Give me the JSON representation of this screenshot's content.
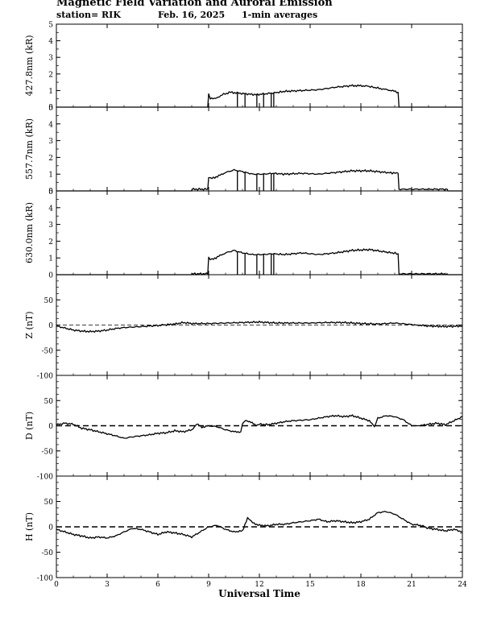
{
  "header": {
    "title": "Magnetic Field Variation and Auroral Emission",
    "station": "station= RIK",
    "date": "Feb. 16, 2025",
    "averaging": "1-min averages"
  },
  "chart_data": [
    {
      "type": "line",
      "ylabel": "427.8nm (kR)",
      "ylim": [
        0,
        5
      ],
      "yticks": [
        0,
        1,
        2,
        3,
        4,
        5
      ],
      "xlim": [
        0,
        24
      ],
      "series": [
        {
          "x": [
            0,
            8.95,
            9.0,
            9.1,
            9.4,
            9.8,
            10.3,
            10.7,
            11.2,
            11.8,
            12.3,
            12.8,
            13.5,
            14.5,
            15.5,
            16.5,
            17.5,
            18.3,
            19.0,
            19.8,
            20.2,
            20.25,
            24
          ],
          "values": [
            0,
            0,
            0.8,
            0.55,
            0.5,
            0.75,
            0.9,
            0.85,
            0.8,
            0.75,
            0.8,
            0.85,
            0.95,
            1.0,
            1.05,
            1.2,
            1.3,
            1.28,
            1.15,
            1.0,
            0.9,
            0,
            0
          ]
        }
      ],
      "spikes": [
        10.7,
        11.15,
        11.85,
        12.25,
        12.7,
        12.85
      ]
    },
    {
      "type": "line",
      "ylabel": "557.7nm (kR)",
      "ylim": [
        0,
        5
      ],
      "yticks": [
        0,
        1,
        2,
        3,
        4,
        5
      ],
      "xlim": [
        0,
        24
      ],
      "series": [
        {
          "x": [
            0,
            8.0,
            8.01,
            8.95,
            9.0,
            9.2,
            9.6,
            10.0,
            10.5,
            11.0,
            11.6,
            12.2,
            12.8,
            13.5,
            14.5,
            15.5,
            16.5,
            17.5,
            18.5,
            19.5,
            20.2,
            20.25,
            23.1,
            23.15,
            24
          ],
          "values": [
            0,
            0,
            0.1,
            0.1,
            0.8,
            0.75,
            0.9,
            1.1,
            1.25,
            1.15,
            1.0,
            1.0,
            1.05,
            1.0,
            1.05,
            1.0,
            1.1,
            1.2,
            1.2,
            1.1,
            1.05,
            0.1,
            0.1,
            0,
            0
          ]
        }
      ],
      "spikes": [
        10.7,
        11.15,
        11.85,
        12.25,
        12.7,
        12.85
      ]
    },
    {
      "type": "line",
      "ylabel": "630.0nm (kR)",
      "ylim": [
        0,
        5
      ],
      "yticks": [
        0,
        1,
        2,
        3,
        4,
        5
      ],
      "xlim": [
        0,
        24
      ],
      "series": [
        {
          "x": [
            0,
            8.0,
            8.01,
            8.95,
            9.0,
            9.2,
            9.6,
            10.0,
            10.5,
            11.0,
            11.6,
            12.2,
            12.8,
            13.5,
            14.5,
            15.5,
            16.5,
            17.5,
            18.5,
            19.5,
            20.2,
            20.25,
            23.1,
            23.15,
            24
          ],
          "values": [
            0,
            0,
            0.05,
            0.05,
            1.0,
            0.9,
            1.1,
            1.3,
            1.45,
            1.3,
            1.2,
            1.2,
            1.25,
            1.2,
            1.3,
            1.2,
            1.3,
            1.45,
            1.5,
            1.35,
            1.25,
            0.05,
            0.05,
            0,
            0
          ]
        }
      ],
      "spikes": [
        10.7,
        11.15,
        11.85,
        12.25,
        12.7,
        12.85
      ]
    },
    {
      "type": "line",
      "ylabel": "Z (nT)",
      "ylim": [
        -100,
        100
      ],
      "yticks": [
        -100,
        -50,
        0,
        50
      ],
      "xlim": [
        0,
        24
      ],
      "zeroline": true,
      "series": [
        {
          "x": [
            0,
            0.5,
            1.0,
            1.5,
            2.0,
            2.5,
            3.0,
            3.5,
            4.0,
            5.0,
            6.0,
            7.0,
            7.5,
            8.0,
            9.0,
            10.0,
            11.0,
            12.0,
            13.0,
            14.0,
            15.0,
            16.0,
            17.0,
            18.0,
            19.0,
            20.0,
            21.0,
            22.0,
            23.0,
            24.0
          ],
          "values": [
            -2,
            -6,
            -10,
            -12,
            -13,
            -12,
            -10,
            -7,
            -5,
            -3,
            -1,
            2,
            5,
            3,
            3,
            4,
            5,
            6,
            4,
            4,
            4,
            5,
            5,
            3,
            2,
            4,
            1,
            -2,
            -3,
            -2
          ]
        }
      ]
    },
    {
      "type": "line",
      "ylabel": "D (nT)",
      "ylim": [
        -100,
        100
      ],
      "yticks": [
        -100,
        -50,
        0,
        50
      ],
      "xlim": [
        0,
        24
      ],
      "zeroline": true,
      "series": [
        {
          "x": [
            0,
            0.5,
            1.0,
            1.5,
            2.0,
            2.5,
            3.0,
            3.5,
            4.0,
            4.5,
            5.0,
            5.5,
            6.0,
            6.5,
            7.0,
            7.5,
            8.0,
            8.3,
            8.6,
            9.0,
            9.5,
            10.0,
            10.5,
            10.9,
            11.0,
            11.2,
            11.5,
            11.8,
            12.0,
            12.5,
            13.0,
            13.5,
            14.0,
            15.0,
            15.5,
            16.0,
            16.5,
            17.0,
            17.5,
            18.0,
            18.5,
            18.8,
            19.0,
            19.5,
            20.0,
            20.5,
            21.0,
            21.5,
            22.0,
            22.5,
            23.0,
            23.5,
            24.0
          ],
          "values": [
            2,
            5,
            3,
            -5,
            -8,
            -12,
            -16,
            -20,
            -25,
            -22,
            -20,
            -18,
            -15,
            -14,
            -10,
            -12,
            -8,
            3,
            -3,
            0,
            -2,
            -8,
            -12,
            -12,
            5,
            10,
            8,
            0,
            3,
            2,
            5,
            8,
            10,
            12,
            15,
            18,
            20,
            18,
            20,
            15,
            10,
            -2,
            15,
            20,
            18,
            12,
            0,
            0,
            3,
            5,
            2,
            10,
            18
          ]
        }
      ]
    },
    {
      "type": "line",
      "ylabel": "H (nT)",
      "ylim": [
        -100,
        100
      ],
      "yticks": [
        -100,
        -50,
        0,
        50
      ],
      "xlim": [
        0,
        24
      ],
      "xticks": [
        0,
        3,
        6,
        9,
        12,
        15,
        18,
        21,
        24
      ],
      "xlabel": "Universal Time",
      "zeroline": true,
      "series": [
        {
          "x": [
            0,
            0.5,
            1.0,
            1.5,
            2.0,
            2.5,
            3.0,
            3.5,
            4.0,
            4.5,
            5.0,
            5.5,
            6.0,
            6.5,
            7.0,
            7.5,
            8.0,
            8.5,
            9.0,
            9.5,
            10.0,
            10.5,
            11.0,
            11.3,
            11.6,
            12.0,
            12.5,
            13.0,
            13.5,
            14.0,
            14.5,
            15.0,
            15.5,
            16.0,
            16.5,
            17.0,
            17.5,
            18.0,
            18.5,
            19.0,
            19.5,
            20.0,
            20.5,
            21.0,
            21.5,
            22.0,
            22.5,
            23.0,
            23.5,
            24.0
          ],
          "values": [
            -5,
            -10,
            -15,
            -18,
            -22,
            -20,
            -22,
            -18,
            -10,
            -3,
            -5,
            -10,
            -15,
            -10,
            -12,
            -15,
            -20,
            -10,
            0,
            3,
            -5,
            -10,
            -8,
            18,
            8,
            3,
            2,
            5,
            5,
            8,
            10,
            12,
            15,
            10,
            12,
            10,
            8,
            10,
            15,
            28,
            30,
            25,
            15,
            5,
            3,
            -3,
            -5,
            -8,
            -5,
            -10
          ]
        }
      ]
    }
  ]
}
